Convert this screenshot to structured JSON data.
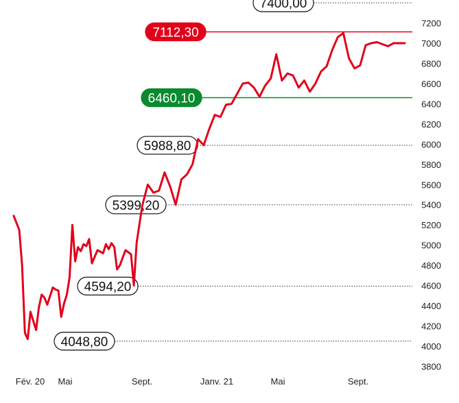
{
  "chart_data": {
    "type": "line",
    "x_ticks": [
      "Fév. 20",
      "Mai",
      "Sept.",
      "Janv. 21",
      "Mai",
      "Sept."
    ],
    "y_ticks": [
      3800,
      4000,
      4200,
      4400,
      4600,
      4800,
      5000,
      5200,
      5400,
      5600,
      5800,
      6000,
      6200,
      6400,
      6600,
      6800,
      7000,
      7200
    ],
    "ylim": [
      3800,
      7400
    ],
    "grid": false,
    "levels": [
      {
        "label": "7400,00",
        "value": 7400,
        "style": "outline",
        "color": "#222222"
      },
      {
        "label": "7112,30",
        "value": 7112.3,
        "style": "filled",
        "color": "#e2001a"
      },
      {
        "label": "6460,10",
        "value": 6460.1,
        "style": "filled",
        "color": "#0a8a2e"
      },
      {
        "label": "5988,80",
        "value": 5988.8,
        "style": "outline",
        "color": "#222222"
      },
      {
        "label": "5399,20",
        "value": 5399.2,
        "style": "outline",
        "color": "#222222"
      },
      {
        "label": "4594,20",
        "value": 4594.2,
        "style": "outline",
        "color": "#222222"
      },
      {
        "label": "4048,80",
        "value": 4048.8,
        "style": "outline",
        "color": "#222222"
      }
    ],
    "series": [
      {
        "color": "#e2001a",
        "x": [
          0,
          1,
          1.5,
          2,
          2.5,
          3,
          4,
          4.5,
          5,
          5.5,
          6,
          7,
          7.5,
          8,
          8.5,
          9,
          9.5,
          10,
          10.5,
          11,
          11.5,
          12,
          12.5,
          13,
          13.5,
          14,
          15,
          16,
          16.5,
          17,
          17.5,
          18,
          18.5,
          19,
          20,
          21,
          21.5,
          22,
          23,
          24,
          25,
          26,
          27,
          28,
          29,
          30,
          31,
          32,
          33,
          34,
          35,
          36,
          37,
          38,
          39,
          40,
          41,
          42,
          43,
          44,
          45,
          46,
          47,
          48,
          49,
          50,
          51,
          52,
          53,
          54,
          55,
          56,
          57,
          58,
          59,
          60,
          61,
          62,
          63,
          64,
          65,
          66,
          67,
          68,
          69,
          70
        ],
        "y": [
          5290,
          5150,
          4800,
          4130,
          4070,
          4340,
          4160,
          4380,
          4510,
          4480,
          4410,
          4580,
          4560,
          4550,
          4290,
          4420,
          4510,
          4680,
          5200,
          4840,
          4980,
          4940,
          5010,
          4990,
          5060,
          4820,
          4950,
          4920,
          5010,
          4960,
          5020,
          4980,
          4760,
          4800,
          4950,
          4910,
          4600,
          5020,
          5390,
          5600,
          5520,
          5540,
          5720,
          5580,
          5400,
          5650,
          5700,
          5800,
          6050,
          5990,
          6150,
          6290,
          6270,
          6390,
          6400,
          6500,
          6600,
          6610,
          6560,
          6470,
          6580,
          6650,
          6890,
          6630,
          6700,
          6680,
          6560,
          6630,
          6520,
          6600,
          6720,
          6770,
          6930,
          7060,
          7100,
          6850,
          6750,
          6780,
          6980,
          7000,
          7010,
          6990,
          6970,
          7000,
          7000,
          7000
        ]
      }
    ]
  }
}
